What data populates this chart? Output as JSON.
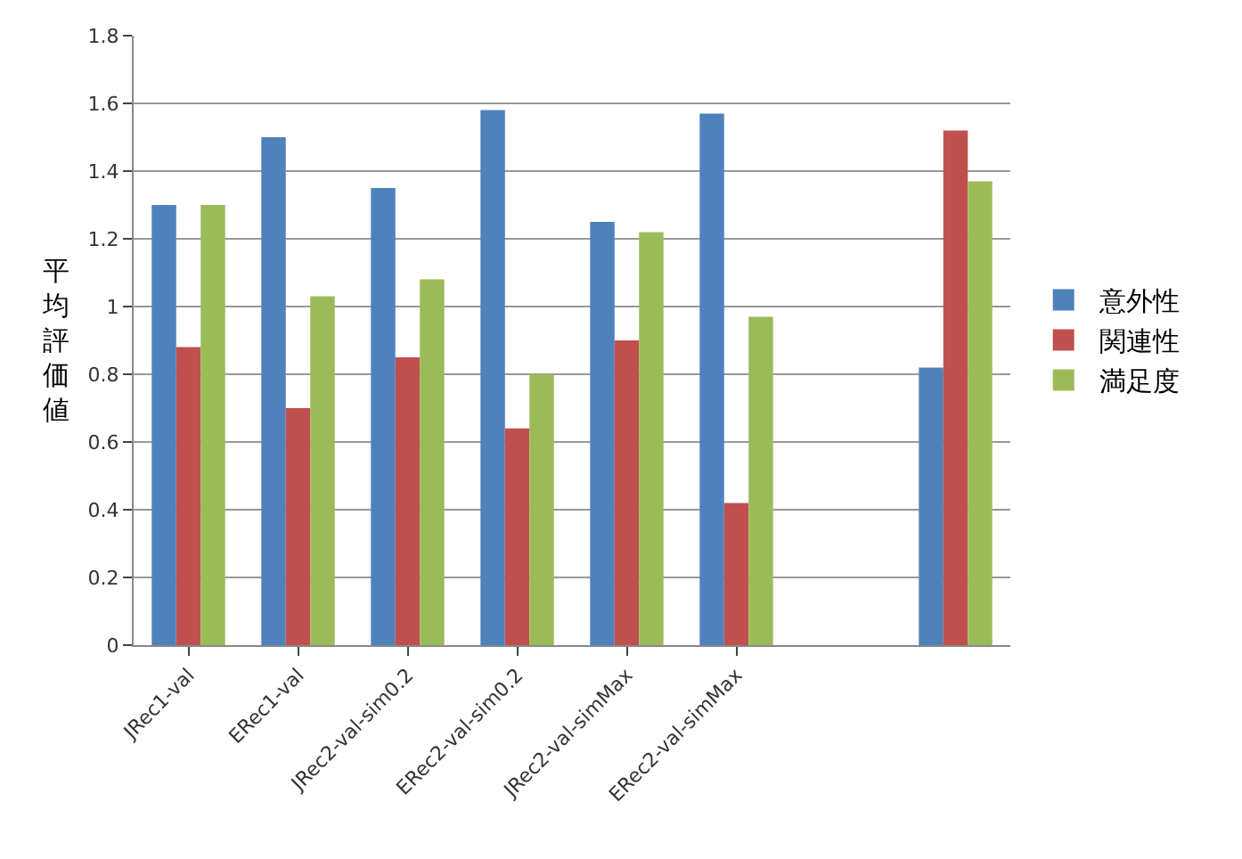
{
  "chart_data": {
    "type": "bar",
    "ylabel": "平均評価値",
    "categories": [
      "JRec1-val",
      "ERec1-val",
      "JRec2-val-sim0.2",
      "ERec2-val-sim0.2",
      "JRec2-val-simMax",
      "ERec2-val-simMax",
      null,
      null
    ],
    "series": [
      {
        "name": "意外性",
        "color": "#4f81bd",
        "values": [
          1.3,
          1.5,
          1.35,
          1.58,
          1.25,
          1.57,
          null,
          0.82
        ]
      },
      {
        "name": "関連性",
        "color": "#c0504d",
        "values": [
          0.88,
          0.7,
          0.85,
          0.64,
          0.9,
          0.42,
          null,
          1.52
        ]
      },
      {
        "name": "満足度",
        "color": "#9bbb59",
        "values": [
          1.3,
          1.03,
          1.08,
          0.8,
          1.22,
          0.97,
          null,
          1.37
        ]
      }
    ],
    "ylim": [
      0,
      1.8
    ],
    "yticks": [
      0,
      0.2,
      0.4,
      0.6,
      0.8,
      1,
      1.2,
      1.4,
      1.6,
      1.8
    ],
    "grid": "y",
    "legend": "right"
  }
}
